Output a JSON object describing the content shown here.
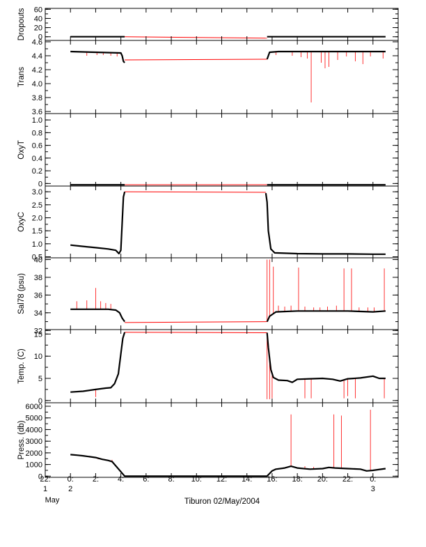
{
  "chart_data": {
    "type": "line",
    "title": "",
    "xlabel": "Tiburon 02/May/2004",
    "x_ticks": [
      {
        "t": 0,
        "l1": "22:",
        "l2": "1",
        "l3": "May"
      },
      {
        "t": 2,
        "l1": "0:",
        "l2": "2",
        "l3": ""
      },
      {
        "t": 4,
        "l1": "2:",
        "l2": "",
        "l3": ""
      },
      {
        "t": 6,
        "l1": "4:",
        "l2": "",
        "l3": ""
      },
      {
        "t": 8,
        "l1": "6:",
        "l2": "",
        "l3": ""
      },
      {
        "t": 10,
        "l1": "8:",
        "l2": "",
        "l3": ""
      },
      {
        "t": 12,
        "l1": "10:",
        "l2": "",
        "l3": ""
      },
      {
        "t": 14,
        "l1": "12:",
        "l2": "",
        "l3": ""
      },
      {
        "t": 16,
        "l1": "14:",
        "l2": "",
        "l3": ""
      },
      {
        "t": 18,
        "l1": "16:",
        "l2": "",
        "l3": ""
      },
      {
        "t": 20,
        "l1": "18:",
        "l2": "",
        "l3": ""
      },
      {
        "t": 22,
        "l1": "20:",
        "l2": "",
        "l3": ""
      },
      {
        "t": 24,
        "l1": "22:",
        "l2": "",
        "l3": ""
      },
      {
        "t": 26,
        "l1": "0:",
        "l2": "3",
        "l3": ""
      }
    ],
    "x_range": [
      0,
      28
    ],
    "colors": {
      "data": "#000000",
      "gap": "#ff0000",
      "spike": "#ff0000"
    },
    "panels": [
      {
        "name": "dropouts",
        "ylabel": "Dropouts",
        "ylim": [
          -8,
          62
        ],
        "yticks": [
          60,
          40,
          20,
          0
        ],
        "segments": [
          {
            "x": [
              2,
              6.3
            ],
            "y": [
              0,
              0
            ]
          },
          {
            "x": [
              17.6,
              27
            ],
            "y": [
              0,
              0
            ]
          }
        ],
        "gap": {
          "x": [
            6.3,
            17.6
          ],
          "y": [
            0,
            -3
          ]
        },
        "spikes": []
      },
      {
        "name": "trans",
        "ylabel": "Trans",
        "ylim": [
          3.57,
          4.62
        ],
        "yticks": [
          4.6,
          4.4,
          4.2,
          4.0,
          3.8,
          3.6
        ],
        "segments": [
          {
            "x": [
              2,
              4,
              6.0,
              6.1,
              6.2,
              6.3
            ],
            "y": [
              4.46,
              4.45,
              4.44,
              4.4,
              4.32,
              4.3
            ]
          },
          {
            "x": [
              17.6,
              17.8,
              18.5,
              27
            ],
            "y": [
              4.35,
              4.45,
              4.46,
              4.46
            ]
          }
        ],
        "gap": {
          "x": [
            6.3,
            17.6
          ],
          "y": [
            4.34,
            4.35
          ]
        },
        "spikes": [
          {
            "x": 3.3,
            "y": 4.4
          },
          {
            "x": 4.1,
            "y": 4.41
          },
          {
            "x": 4.6,
            "y": 4.41
          },
          {
            "x": 5.2,
            "y": 4.4
          },
          {
            "x": 5.7,
            "y": 4.39
          },
          {
            "x": 18.3,
            "y": 4.41
          },
          {
            "x": 19.6,
            "y": 4.4
          },
          {
            "x": 20.3,
            "y": 4.38
          },
          {
            "x": 20.8,
            "y": 4.36
          },
          {
            "x": 21.1,
            "y": 3.73
          },
          {
            "x": 21.9,
            "y": 4.3
          },
          {
            "x": 22.2,
            "y": 4.22
          },
          {
            "x": 22.5,
            "y": 4.24
          },
          {
            "x": 23.2,
            "y": 4.34
          },
          {
            "x": 23.9,
            "y": 4.39
          },
          {
            "x": 24.6,
            "y": 4.32
          },
          {
            "x": 25.2,
            "y": 4.28
          },
          {
            "x": 25.8,
            "y": 4.39
          },
          {
            "x": 26.8,
            "y": 4.36
          }
        ]
      },
      {
        "name": "oxyt",
        "ylabel": "OxyT",
        "ylim": [
          -0.04,
          1.1
        ],
        "yticks": [
          1.0,
          0.8,
          0.6,
          0.4,
          0.2,
          0.0
        ],
        "segments": [
          {
            "x": [
              2,
              6.3
            ],
            "y": [
              -0.02,
              -0.02
            ]
          },
          {
            "x": [
              17.6,
              27
            ],
            "y": [
              -0.02,
              -0.02
            ]
          }
        ],
        "gap": {
          "x": [
            6.3,
            17.6
          ],
          "y": [
            -0.02,
            -0.02
          ]
        },
        "spikes": []
      },
      {
        "name": "oxyc",
        "ylabel": "OxyC",
        "ylim": [
          0.46,
          3.22
        ],
        "yticks": [
          3.0,
          2.5,
          2.0,
          1.5,
          1.0,
          0.5
        ],
        "segments": [
          {
            "x": [
              2,
              3,
              4,
              5,
              5.6,
              5.85,
              6.0,
              6.1,
              6.2,
              6.3
            ],
            "y": [
              0.95,
              0.9,
              0.85,
              0.8,
              0.75,
              0.62,
              0.75,
              1.8,
              2.8,
              3.0
            ]
          },
          {
            "x": [
              17.5,
              17.6,
              17.7,
              17.9,
              18.2,
              20,
              22,
              24,
              26,
              27
            ],
            "y": [
              2.95,
              2.6,
              1.5,
              0.8,
              0.65,
              0.62,
              0.61,
              0.61,
              0.6,
              0.6
            ]
          }
        ],
        "gap": {
          "x": [
            6.3,
            17.5
          ],
          "y": [
            3.0,
            2.98
          ]
        },
        "spikes": []
      },
      {
        "name": "sal78",
        "ylabel": "Sal78 (psu)",
        "ylim": [
          32.1,
          40.2
        ],
        "yticks": [
          40,
          38,
          36,
          34,
          32
        ],
        "segments": [
          {
            "x": [
              2,
              3,
              4,
              5,
              5.6,
              5.9,
              6.1,
              6.3
            ],
            "y": [
              34.4,
              34.4,
              34.4,
              34.4,
              34.3,
              34.0,
              33.4,
              33.0
            ]
          },
          {
            "x": [
              17.6,
              17.8,
              18.3,
              20,
              22,
              24,
              26,
              27
            ],
            "y": [
              33.0,
              33.6,
              34.1,
              34.2,
              34.2,
              34.2,
              34.1,
              34.2
            ]
          }
        ],
        "gap": {
          "x": [
            6.3,
            17.6
          ],
          "y": [
            32.9,
            33.0
          ]
        },
        "spikes": [
          {
            "x": 2.5,
            "y": 35.3
          },
          {
            "x": 3.3,
            "y": 35.4
          },
          {
            "x": 4.0,
            "y": 36.8
          },
          {
            "x": 4.4,
            "y": 35.3
          },
          {
            "x": 4.8,
            "y": 35.1
          },
          {
            "x": 5.2,
            "y": 35.0
          },
          {
            "x": 17.6,
            "y": 40.0
          },
          {
            "x": 17.8,
            "y": 40.0
          },
          {
            "x": 18.1,
            "y": 39.2
          },
          {
            "x": 18.5,
            "y": 34.8
          },
          {
            "x": 19.0,
            "y": 34.7
          },
          {
            "x": 19.5,
            "y": 34.8
          },
          {
            "x": 20.1,
            "y": 39.1
          },
          {
            "x": 20.6,
            "y": 34.7
          },
          {
            "x": 21.3,
            "y": 34.6
          },
          {
            "x": 21.8,
            "y": 34.6
          },
          {
            "x": 22.4,
            "y": 34.7
          },
          {
            "x": 23.1,
            "y": 34.8
          },
          {
            "x": 23.7,
            "y": 39.0
          },
          {
            "x": 24.3,
            "y": 39.0
          },
          {
            "x": 24.9,
            "y": 34.6
          },
          {
            "x": 25.6,
            "y": 34.6
          },
          {
            "x": 26.1,
            "y": 34.6
          },
          {
            "x": 26.9,
            "y": 39.0
          }
        ]
      },
      {
        "name": "temp",
        "ylabel": "Temp. (C)",
        "ylim": [
          -0.5,
          16
        ],
        "yticks": [
          15,
          10,
          5,
          0
        ],
        "segments": [
          {
            "x": [
              2,
              3,
              4,
              4.8,
              5.2,
              5.5,
              5.8,
              6.0,
              6.15,
              6.3
            ],
            "y": [
              1.9,
              2.1,
              2.5,
              2.8,
              2.9,
              3.8,
              6.0,
              10.5,
              14.0,
              15.4
            ]
          },
          {
            "x": [
              17.6,
              17.7,
              17.9,
              18.1,
              18.5,
              19.2,
              19.6,
              20,
              21,
              22,
              22.8,
              23.4,
              24,
              25,
              26,
              26.5,
              27
            ],
            "y": [
              15.3,
              12.0,
              7.0,
              5.2,
              4.6,
              4.5,
              4.1,
              4.8,
              4.9,
              5.0,
              4.8,
              4.4,
              4.9,
              5.1,
              5.5,
              5.0,
              5.0
            ]
          }
        ],
        "gap": {
          "x": [
            6.3,
            17.6
          ],
          "y": [
            15.4,
            15.3
          ]
        },
        "spikes": [
          {
            "x": 4.0,
            "y": 0.8
          },
          {
            "x": 17.6,
            "y": 0.3
          },
          {
            "x": 17.8,
            "y": 0.3
          },
          {
            "x": 18.0,
            "y": 0.5
          },
          {
            "x": 20.6,
            "y": 0.5
          },
          {
            "x": 21.1,
            "y": 0.5
          },
          {
            "x": 23.7,
            "y": 0.5
          },
          {
            "x": 24.0,
            "y": 1.0
          },
          {
            "x": 24.6,
            "y": 0.5
          },
          {
            "x": 26.9,
            "y": 0.5
          }
        ]
      },
      {
        "name": "press",
        "ylabel": "Press. (db)",
        "ylim": [
          -100,
          6300
        ],
        "yticks": [
          6000,
          5000,
          4000,
          3000,
          2000,
          1000,
          0
        ],
        "segments": [
          {
            "x": [
              2,
              2.5,
              3,
              4,
              4.5,
              5,
              5.3,
              6.3,
              17.6,
              18.0,
              18.3,
              19.0,
              19.5,
              20,
              21,
              22,
              22.5,
              23,
              24,
              25,
              25.5,
              26,
              27
            ],
            "y": [
              1850,
              1800,
              1750,
              1600,
              1450,
              1350,
              1250,
              0,
              0,
              450,
              600,
              700,
              850,
              700,
              600,
              650,
              750,
              700,
              650,
              600,
              450,
              500,
              650
            ]
          }
        ],
        "gap": null,
        "spikes": [
          {
            "x": 2.5,
            "y": 1800
          },
          {
            "x": 3.5,
            "y": 1600
          },
          {
            "x": 4.2,
            "y": 1450
          },
          {
            "x": 5.0,
            "y": 1350
          },
          {
            "x": 5.3,
            "y": 1400
          },
          {
            "x": 17.9,
            "y": 400
          },
          {
            "x": 19.5,
            "y": 5300
          },
          {
            "x": 20.6,
            "y": 850
          },
          {
            "x": 21.3,
            "y": 800
          },
          {
            "x": 22.9,
            "y": 5300
          },
          {
            "x": 23.5,
            "y": 5200
          },
          {
            "x": 24.2,
            "y": 700
          },
          {
            "x": 25.8,
            "y": 5700
          },
          {
            "x": 26.5,
            "y": 550
          }
        ]
      }
    ]
  }
}
